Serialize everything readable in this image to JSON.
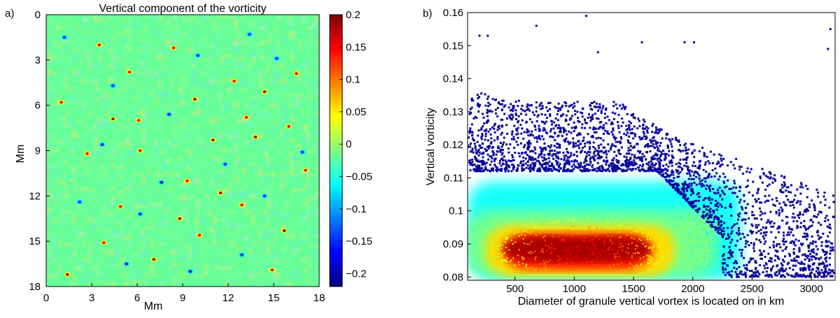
{
  "chart_data": [
    {
      "type": "heatmap",
      "panel_label": "a)",
      "title": "Vertical component of the vorticity",
      "xlabel": "Mm",
      "ylabel": "Mm",
      "xlim": [
        0,
        18
      ],
      "ylim": [
        0,
        18
      ],
      "y_reversed": true,
      "xticks": [
        0,
        3,
        6,
        9,
        12,
        15,
        18
      ],
      "yticks": [
        0,
        3,
        6,
        9,
        12,
        15,
        18
      ],
      "colorbar": {
        "range": [
          -0.22,
          0.2
        ],
        "ticks": [
          0.2,
          0.15,
          0.1,
          0.05,
          0,
          -0.05,
          -0.1,
          -0.15,
          -0.2
        ],
        "tick_labels": [
          "0.2",
          "0.15",
          "0.1",
          "0.05",
          "0",
          "−0.05",
          "−0.1",
          "−0.15",
          "−0.2"
        ],
        "colormap": "jet"
      },
      "background_value": -0.02,
      "features": {
        "positive_spots": [
          [
            4.4,
            6.9
          ],
          [
            6.1,
            7.0
          ],
          [
            13.2,
            6.8
          ],
          [
            13.8,
            8.1
          ],
          [
            5.5,
            3.8
          ],
          [
            8.4,
            2.2
          ],
          [
            11.5,
            11.8
          ],
          [
            9.3,
            11.0
          ],
          [
            12.9,
            12.6
          ],
          [
            14.4,
            5.1
          ],
          [
            16.5,
            3.9
          ],
          [
            3.8,
            15.1
          ],
          [
            1.4,
            17.2
          ],
          [
            6.2,
            9.0
          ],
          [
            10.1,
            14.6
          ],
          [
            15.7,
            14.3
          ],
          [
            2.7,
            9.2
          ],
          [
            12.4,
            4.4
          ],
          [
            8.8,
            13.5
          ],
          [
            17.1,
            10.3
          ],
          [
            4.9,
            12.7
          ],
          [
            7.1,
            16.2
          ],
          [
            14.9,
            16.9
          ],
          [
            1.0,
            5.8
          ],
          [
            11.0,
            8.3
          ],
          [
            16.0,
            7.4
          ],
          [
            3.5,
            2.0
          ],
          [
            9.8,
            5.6
          ]
        ],
        "negative_spots": [
          [
            3.7,
            8.6
          ],
          [
            10.0,
            2.7
          ],
          [
            14.4,
            12.0
          ],
          [
            6.2,
            13.2
          ],
          [
            11.8,
            9.9
          ],
          [
            2.2,
            12.4
          ],
          [
            8.1,
            6.6
          ],
          [
            15.2,
            2.9
          ],
          [
            12.9,
            15.9
          ],
          [
            5.3,
            16.5
          ],
          [
            16.9,
            9.1
          ],
          [
            1.2,
            1.5
          ],
          [
            7.6,
            11.1
          ],
          [
            13.4,
            1.3
          ],
          [
            4.4,
            4.7
          ],
          [
            9.5,
            17.0
          ]
        ]
      }
    },
    {
      "type": "scatter",
      "panel_label": "b)",
      "xlabel": "Diameter of granule vertical vortex is located on in km",
      "ylabel": "Vertical vorticity",
      "xlim": [
        100,
        3200
      ],
      "ylim": [
        0.079,
        0.16
      ],
      "xticks": [
        500,
        1000,
        1500,
        2000,
        2500,
        3000
      ],
      "yticks": [
        0.08,
        0.09,
        0.1,
        0.11,
        0.12,
        0.13,
        0.14,
        0.15,
        0.16
      ],
      "ytick_labels": [
        "0.08",
        "0.09",
        "0.1",
        "0.11",
        "0.12",
        "0.13",
        "0.14",
        "0.15",
        "0.16"
      ],
      "colored_by": "point density (jet: dark blue low, dark red high)",
      "density_peak": {
        "x": [
          700,
          1400
        ],
        "y": 0.088
      },
      "outliers": [
        [
          200,
          0.153
        ],
        [
          270,
          0.153
        ],
        [
          680,
          0.156
        ],
        [
          1100,
          0.159
        ],
        [
          1200,
          0.148
        ],
        [
          1570,
          0.151
        ],
        [
          1930,
          0.151
        ],
        [
          2010,
          0.151
        ],
        [
          3160,
          0.155
        ],
        [
          3140,
          0.149
        ]
      ]
    }
  ]
}
